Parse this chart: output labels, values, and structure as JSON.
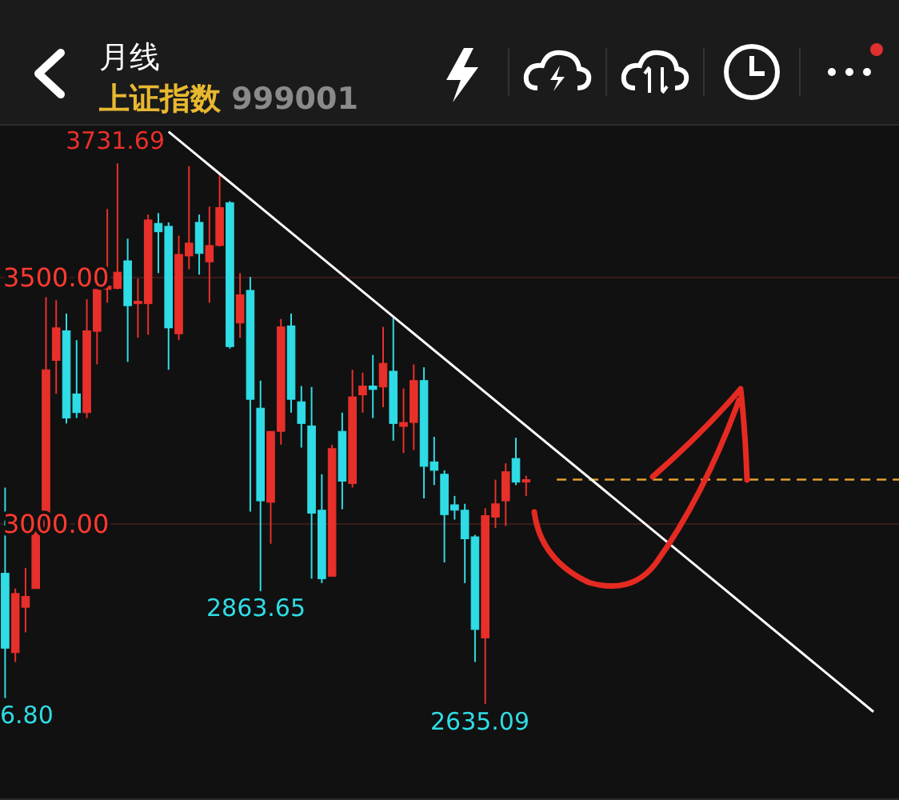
{
  "chart_data": {
    "type": "candlestick",
    "title": "月线",
    "subtitle": "上证指数 999001",
    "categories": [
      null,
      null,
      null,
      null,
      null,
      null,
      null,
      null,
      null,
      null,
      null,
      null,
      null,
      null,
      null,
      null,
      null,
      null,
      null,
      null,
      null,
      null,
      null,
      null,
      null,
      null,
      null,
      null,
      null,
      null,
      null,
      null,
      null,
      null,
      null,
      null,
      null,
      null,
      null,
      null,
      null,
      null,
      null,
      null,
      null,
      null,
      null,
      null,
      null,
      null,
      null,
      null,
      null,
      null,
      null,
      null,
      null,
      null,
      null,
      null,
      null,
      null,
      null,
      null,
      null,
      null,
      null,
      null,
      null,
      null,
      null,
      null,
      null,
      null,
      null,
      null,
      null,
      null,
      null,
      null,
      null,
      null,
      null,
      null,
      null,
      null,
      null,
      null
    ],
    "ohlc": [
      [
        2900,
        3074,
        2646.8,
        2748
      ],
      [
        2739,
        2869,
        2720,
        2859
      ],
      [
        2831,
        2911,
        2780,
        2853
      ],
      [
        2869,
        2998,
        2869,
        2987
      ],
      [
        2989,
        3460,
        2987,
        3313
      ],
      [
        3332,
        3454,
        3264,
        3398
      ],
      [
        3392,
        3427,
        3204,
        3215
      ],
      [
        3264,
        3373,
        3215,
        3226
      ],
      [
        3226,
        3456,
        3215,
        3392
      ],
      [
        3391,
        3509,
        3324,
        3476
      ],
      [
        3476,
        3639,
        3449,
        3483
      ],
      [
        3478,
        3731.69,
        3476,
        3511
      ],
      [
        3534,
        3579,
        3329,
        3443
      ],
      [
        3447,
        3498,
        3378,
        3452
      ],
      [
        3447,
        3628,
        3384,
        3617
      ],
      [
        3610,
        3631,
        3509,
        3593
      ],
      [
        3604,
        3612,
        3313,
        3398
      ],
      [
        3386,
        3585,
        3373,
        3547
      ],
      [
        3544,
        3726,
        3517,
        3570
      ],
      [
        3612,
        3628,
        3506,
        3549
      ],
      [
        3532,
        3644,
        3449,
        3565
      ],
      [
        3565,
        3710,
        3563,
        3642
      ],
      [
        3652,
        3655,
        3356,
        3360
      ],
      [
        3408,
        3509,
        3378,
        3465
      ],
      [
        3474,
        3501,
        3025,
        3253
      ],
      [
        3235,
        3291,
        2863.65,
        3047
      ],
      [
        3044,
        3188,
        2960,
        3188
      ],
      [
        3188,
        3416,
        3161,
        3400
      ],
      [
        3402,
        3427,
        3226,
        3253
      ],
      [
        3248,
        3280,
        3155,
        3204
      ],
      [
        3199,
        3278,
        2889,
        3022
      ],
      [
        3028,
        3101,
        2880,
        2889
      ],
      [
        2894,
        3161,
        2894,
        3153
      ],
      [
        3188,
        3226,
        3030,
        3087
      ],
      [
        3082,
        3313,
        3074,
        3258
      ],
      [
        3262,
        3307,
        3226,
        3280
      ],
      [
        3280,
        3343,
        3215,
        3273
      ],
      [
        3278,
        3400,
        3237,
        3326
      ],
      [
        3310,
        3419,
        3169,
        3204
      ],
      [
        3198,
        3275,
        3144,
        3206
      ],
      [
        3206,
        3324,
        3150,
        3291
      ],
      [
        3291,
        3318,
        3052,
        3117
      ],
      [
        3126,
        3177,
        3079,
        3109
      ],
      [
        3101,
        3109,
        2922,
        3019
      ],
      [
        3039,
        3057,
        3009,
        3028
      ],
      [
        3028,
        3041,
        2880,
        2970
      ],
      [
        2974,
        2978,
        2720,
        2786
      ],
      [
        2769,
        3032,
        2635.09,
        3017
      ],
      [
        3014,
        3090,
        2992,
        3041
      ],
      [
        3047,
        3123,
        2996,
        3106
      ],
      [
        3133,
        3175,
        3079,
        3085
      ],
      [
        3085,
        3098,
        3057,
        3090
      ],
      null,
      null,
      null,
      null,
      null,
      null,
      null,
      null,
      null,
      null,
      null,
      null,
      null,
      null,
      null,
      null,
      null,
      null,
      null,
      null,
      null,
      null,
      null,
      null,
      null,
      null,
      null,
      null,
      null,
      null,
      null,
      null,
      null,
      null,
      null,
      null
    ],
    "colors": [
      "#2fdce6",
      "#e8302a",
      "#e8302a",
      "#e8302a",
      "#e8302a",
      "#e8302a",
      "#2fdce6",
      "#2fdce6",
      "#e8302a",
      "#e8302a",
      "#e8302a",
      "#e8302a",
      "#2fdce6",
      "#e8302a",
      "#e8302a",
      "#2fdce6",
      "#2fdce6",
      "#e8302a",
      "#e8302a",
      "#2fdce6",
      "#e8302a",
      "#e8302a",
      "#2fdce6",
      "#e8302a",
      "#2fdce6",
      "#2fdce6",
      "#e8302a",
      "#e8302a",
      "#2fdce6",
      "#2fdce6",
      "#2fdce6",
      "#2fdce6",
      "#e8302a",
      "#2fdce6",
      "#e8302a",
      "#e8302a",
      "#2fdce6",
      "#e8302a",
      "#2fdce6",
      "#e8302a",
      "#e8302a",
      "#2fdce6",
      "#2fdce6",
      "#2fdce6",
      "#2fdce6",
      "#2fdce6",
      "#2fdce6",
      "#e8302a",
      "#e8302a",
      "#e8302a",
      "#2fdce6",
      "#e8302a",
      null,
      null,
      null,
      null,
      null,
      null,
      null,
      null,
      null,
      null,
      null,
      null,
      null,
      null,
      null,
      null,
      null,
      null,
      null,
      null,
      null,
      null,
      null,
      null,
      null,
      null,
      null,
      null,
      null,
      null,
      null,
      null,
      null,
      null,
      null,
      null
    ],
    "ylim": [
      2440,
      3810
    ],
    "yticks": [
      {
        "value": 3500,
        "label": "3500.00"
      },
      {
        "value": 3000,
        "label": "3000.00"
      }
    ],
    "grid": "y",
    "series": [
      {
        "type": "line",
        "color": "#ffffff",
        "values": [
          null,
          null,
          null,
          null,
          null,
          null,
          null,
          null,
          null,
          null,
          null,
          null,
          null,
          null,
          null,
          null,
          3796,
          null,
          null,
          null,
          null,
          null,
          null,
          null,
          null,
          null,
          null,
          null,
          null,
          null,
          null,
          null,
          null,
          null,
          null,
          null,
          null,
          null,
          null,
          null,
          null,
          null,
          null,
          null,
          null,
          null,
          null,
          null,
          null,
          null,
          null,
          null,
          null,
          null,
          null,
          null,
          null,
          null,
          null,
          null,
          null,
          null,
          null,
          null,
          null,
          null,
          null,
          null,
          null,
          null,
          null,
          null,
          null,
          null,
          null,
          null,
          null,
          null,
          null,
          null,
          null,
          null,
          null,
          null,
          null,
          2619,
          null,
          null
        ]
      }
    ],
    "ref_lines": [
      {
        "axis": "y",
        "value": 3090,
        "color": "#e0a030",
        "line_style": "dashed"
      }
    ],
    "annotations": [
      "3731.69",
      "2863.65",
      "2635.09",
      "6.80"
    ]
  }
}
